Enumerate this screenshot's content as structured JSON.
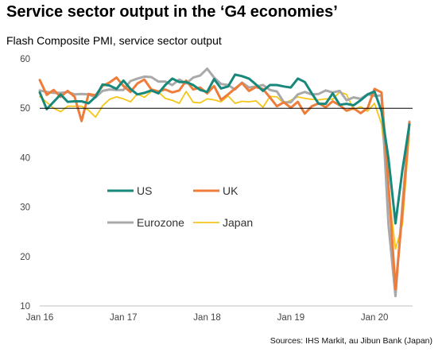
{
  "title": "Service sector output in the ‘G4 economies’",
  "subtitle": "Flash Composite PMI, service sector output",
  "source": "Sources: IHS Markit, au Jibun Bank (Japan)",
  "colors": {
    "US": "#17887a",
    "UK": "#ee7c3a",
    "Eurozone": "#a9a9a9",
    "Japan": "#f5c518"
  },
  "chart_data": {
    "type": "line",
    "x": [
      "2016-01",
      "2016-02",
      "2016-03",
      "2016-04",
      "2016-05",
      "2016-06",
      "2016-07",
      "2016-08",
      "2016-09",
      "2016-10",
      "2016-11",
      "2016-12",
      "2017-01",
      "2017-02",
      "2017-03",
      "2017-04",
      "2017-05",
      "2017-06",
      "2017-07",
      "2017-08",
      "2017-09",
      "2017-10",
      "2017-11",
      "2017-12",
      "2018-01",
      "2018-02",
      "2018-03",
      "2018-04",
      "2018-05",
      "2018-06",
      "2018-07",
      "2018-08",
      "2018-09",
      "2018-10",
      "2018-11",
      "2018-12",
      "2019-01",
      "2019-02",
      "2019-03",
      "2019-04",
      "2019-05",
      "2019-06",
      "2019-07",
      "2019-08",
      "2019-09",
      "2019-10",
      "2019-11",
      "2019-12",
      "2020-01",
      "2020-02",
      "2020-03",
      "2020-04",
      "2020-05",
      "2020-06"
    ],
    "x_ticks": [
      "Jan 16",
      "Jan 17",
      "Jan 18",
      "Jan 19",
      "Jan 20"
    ],
    "ylim": [
      10,
      60
    ],
    "y_ticks": [
      10,
      20,
      30,
      40,
      50,
      60
    ],
    "reference_line": 50,
    "legend": [
      "US",
      "UK",
      "Eurozone",
      "Japan"
    ],
    "series": [
      {
        "name": "US",
        "values": [
          53.2,
          49.8,
          51.3,
          52.8,
          51.3,
          51.4,
          51.4,
          51.0,
          52.3,
          54.8,
          54.6,
          53.9,
          55.6,
          53.9,
          52.8,
          53.1,
          53.6,
          53.0,
          54.7,
          56.0,
          55.3,
          55.3,
          54.7,
          53.7,
          53.3,
          55.9,
          54.0,
          54.4,
          56.8,
          56.5,
          56.0,
          54.8,
          53.5,
          54.7,
          54.7,
          54.4,
          54.2,
          56.0,
          55.3,
          53.0,
          50.9,
          50.9,
          53.0,
          50.7,
          50.9,
          50.6,
          51.6,
          52.8,
          53.4,
          49.4,
          39.8,
          26.7,
          37.5,
          46.7
        ]
      },
      {
        "name": "UK",
        "values": [
          55.7,
          52.7,
          53.7,
          52.3,
          53.5,
          52.3,
          47.4,
          52.9,
          52.6,
          54.5,
          55.2,
          56.2,
          54.5,
          53.3,
          55.0,
          55.8,
          53.8,
          53.4,
          53.8,
          53.2,
          53.6,
          55.6,
          53.8,
          54.2,
          53.0,
          54.5,
          51.7,
          52.8,
          54.0,
          55.1,
          53.5,
          54.3,
          53.9,
          52.2,
          50.4,
          51.2,
          50.1,
          51.3,
          48.9,
          50.4,
          51.0,
          50.2,
          51.4,
          50.6,
          49.5,
          50.0,
          49.0,
          50.0,
          53.9,
          53.2,
          34.5,
          13.4,
          29.0,
          47.1
        ]
      },
      {
        "name": "Eurozone",
        "values": [
          53.6,
          53.3,
          53.1,
          53.1,
          53.3,
          52.8,
          52.9,
          52.8,
          52.2,
          53.5,
          53.8,
          53.7,
          53.7,
          55.5,
          56.0,
          56.4,
          56.3,
          55.4,
          55.4,
          54.7,
          55.8,
          55.0,
          56.2,
          56.6,
          58.0,
          56.2,
          54.9,
          54.7,
          53.8,
          55.2,
          54.2,
          54.4,
          54.7,
          53.7,
          53.4,
          51.2,
          51.2,
          52.8,
          53.3,
          52.8,
          52.9,
          53.6,
          53.2,
          53.5,
          51.6,
          52.2,
          51.9,
          52.8,
          52.5,
          52.6,
          26.4,
          12.0,
          30.5,
          47.3
        ]
      },
      {
        "name": "Japan",
        "values": [
          52.4,
          51.2,
          50.0,
          49.3,
          50.4,
          50.4,
          50.4,
          49.6,
          48.2,
          50.5,
          51.8,
          52.3,
          51.9,
          51.3,
          52.9,
          52.2,
          53.4,
          53.3,
          52.0,
          51.6,
          51.0,
          53.4,
          51.2,
          51.1,
          51.9,
          51.7,
          51.3,
          52.5,
          51.0,
          51.4,
          51.3,
          51.5,
          50.2,
          52.4,
          52.3,
          51.0,
          51.6,
          52.3,
          52.0,
          51.8,
          51.7,
          51.9,
          51.8,
          53.3,
          52.8,
          49.7,
          50.3,
          49.4,
          51.0,
          46.8,
          33.8,
          21.5,
          26.5,
          45.0
        ]
      }
    ]
  }
}
